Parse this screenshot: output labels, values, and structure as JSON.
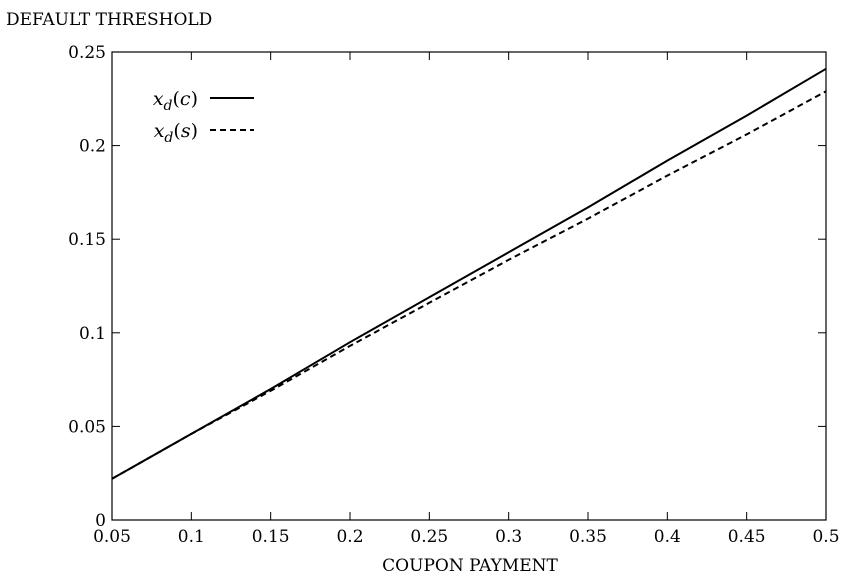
{
  "chart_data": {
    "type": "line",
    "ylabel": "DEFAULT THRESHOLD",
    "xlabel": "COUPON PAYMENT",
    "xlim": [
      0.05,
      0.5
    ],
    "ylim": [
      0,
      0.25
    ],
    "x_ticks": [
      "0.05",
      "0.1",
      "0.15",
      "0.2",
      "0.25",
      "0.3",
      "0.35",
      "0.4",
      "0.45",
      "0.5"
    ],
    "y_ticks": [
      "0",
      "0.05",
      "0.1",
      "0.15",
      "0.2",
      "0.25"
    ],
    "grid": false,
    "legend_position": "top-left",
    "series": [
      {
        "name": "x_d(c)",
        "style": "solid",
        "x": [
          0.05,
          0.1,
          0.15,
          0.2,
          0.25,
          0.3,
          0.35,
          0.4,
          0.45,
          0.5
        ],
        "y": [
          0.022,
          0.046,
          0.07,
          0.095,
          0.119,
          0.143,
          0.167,
          0.192,
          0.216,
          0.241
        ]
      },
      {
        "name": "x_d(s)",
        "style": "dashed",
        "x": [
          0.05,
          0.1,
          0.15,
          0.2,
          0.25,
          0.3,
          0.35,
          0.4,
          0.45,
          0.5
        ],
        "y": [
          0.022,
          0.046,
          0.069,
          0.093,
          0.116,
          0.139,
          0.161,
          0.184,
          0.206,
          0.229
        ]
      }
    ]
  }
}
